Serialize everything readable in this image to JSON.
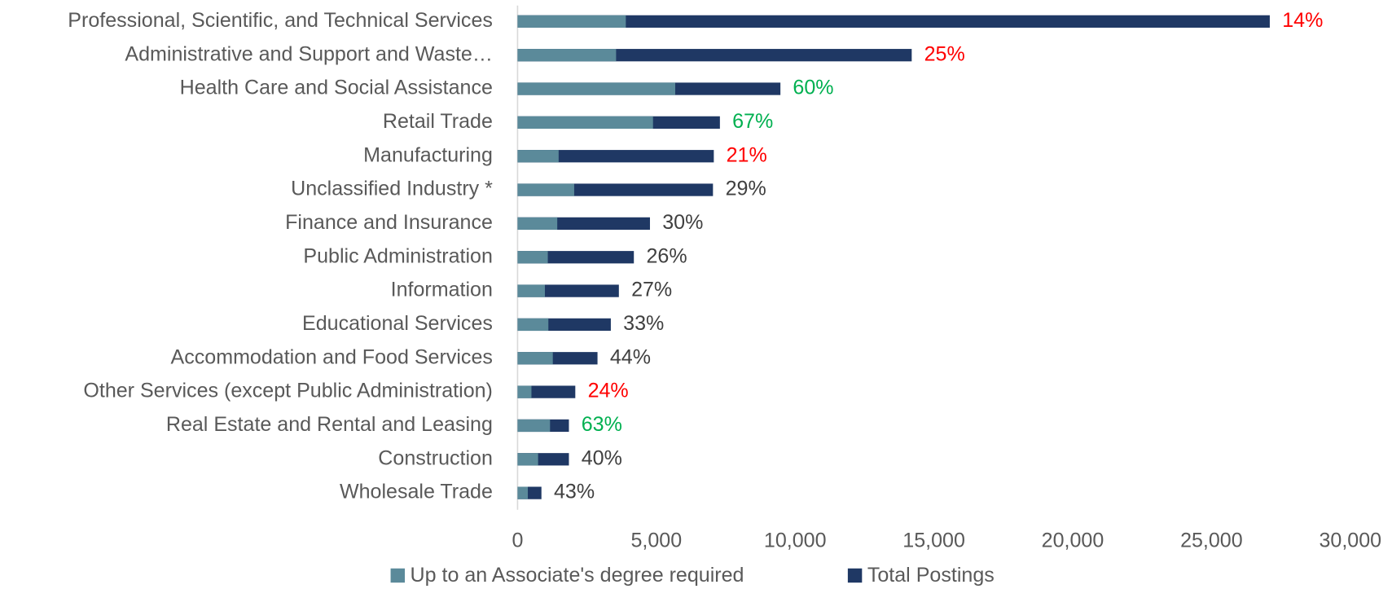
{
  "chart_data": {
    "type": "overlap-hbar",
    "categories": [
      "Professional, Scientific, and Technical Services",
      "Administrative and Support and Waste…",
      "Health Care and Social Assistance",
      "Retail Trade",
      "Manufacturing",
      "Unclassified Industry *",
      "Finance and Insurance",
      "Public Administration",
      "Information",
      "Educational Services",
      "Accommodation and Food Services",
      "Other Services (except Public Administration)",
      "Real Estate and Rental and Leasing",
      "Construction",
      "Wholesale Trade"
    ],
    "series": [
      {
        "name": "Up to an Associate's degree required",
        "color": "#5b8a9a",
        "values": [
          3900,
          3550,
          5680,
          4880,
          1480,
          2040,
          1430,
          1090,
          985,
          1110,
          1270,
          500,
          1170,
          740,
          370
        ]
      },
      {
        "name": "Total Postings",
        "color": "#1f3864",
        "values": [
          27100,
          14200,
          9470,
          7290,
          7070,
          7040,
          4770,
          4190,
          3650,
          3360,
          2880,
          2080,
          1850,
          1850,
          860
        ]
      }
    ],
    "share_labels": [
      "14%",
      "25%",
      "60%",
      "67%",
      "21%",
      "29%",
      "30%",
      "26%",
      "27%",
      "33%",
      "44%",
      "24%",
      "63%",
      "40%",
      "43%"
    ],
    "share_label_colors": [
      "#ff0000",
      "#ff0000",
      "#00b050",
      "#00b050",
      "#ff0000",
      "#404040",
      "#404040",
      "#404040",
      "#404040",
      "#404040",
      "#404040",
      "#ff0000",
      "#00b050",
      "#404040",
      "#404040"
    ],
    "xlim": [
      0,
      30000
    ],
    "xticks": [
      0,
      {
        "value": 5000,
        "label": "5,000"
      },
      {
        "value": 10000,
        "label": "10,000"
      },
      {
        "value": 15000,
        "label": "15,000"
      },
      {
        "value": 20000,
        "label": "20,000"
      },
      {
        "value": 25000,
        "label": "25,000"
      },
      {
        "value": 30000,
        "label": "30,000"
      }
    ],
    "legend": "bottom"
  }
}
